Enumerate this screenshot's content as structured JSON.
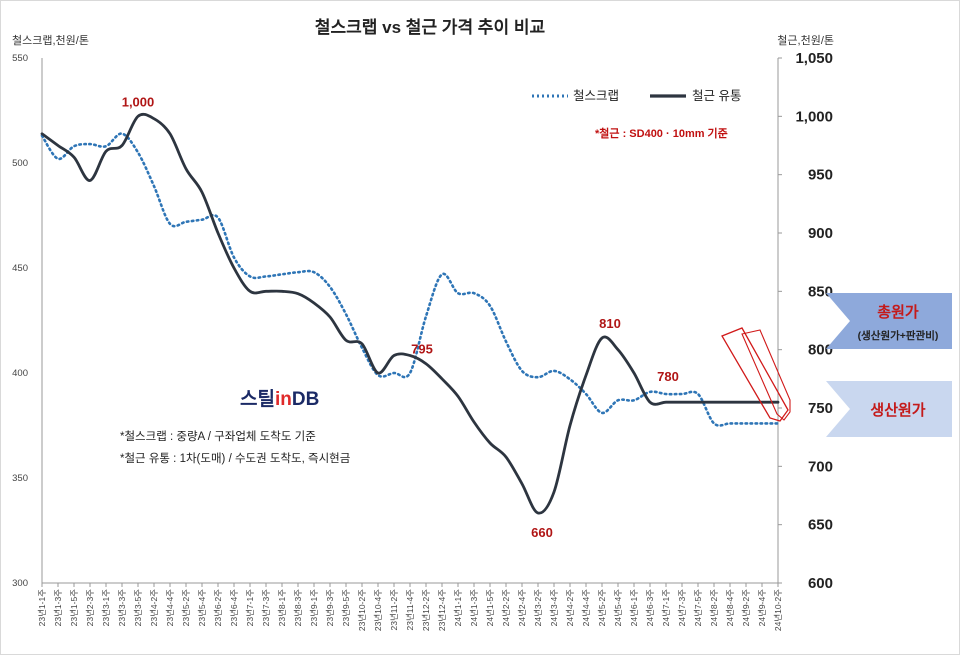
{
  "chart_data": {
    "type": "line",
    "title": "철스크랩 vs 철근 가격 추이 비교",
    "y_left_label": "철스크랩,천원/톤",
    "y_right_label": "철근,천원/톤",
    "y_left_ticks": [
      "550",
      "500",
      "450",
      "400",
      "350",
      "300"
    ],
    "y_right_ticks": [
      "1,050",
      "1,000",
      "950",
      "900",
      "850",
      "800",
      "750",
      "700",
      "650",
      "600"
    ],
    "ylim_left": [
      300,
      550
    ],
    "ylim_right": [
      600,
      1050
    ],
    "x_ticks": [
      "23년1-1주",
      "23년1-3주",
      "23년1-5주",
      "23년2-3주",
      "23년3-1주",
      "23년3-3주",
      "23년3-5주",
      "23년4-2주",
      "23년4-4주",
      "23년5-2주",
      "23년5-4주",
      "23년6-2주",
      "23년6-4주",
      "23년7-1주",
      "23년7-3주",
      "23년8-1주",
      "23년8-3주",
      "23년9-1주",
      "23년9-3주",
      "23년9-5주",
      "23년10-2주",
      "23년10-4주",
      "23년11-2주",
      "23년11-4주",
      "23년12-2주",
      "23년12-4주",
      "24년1-1주",
      "24년1-3주",
      "24년1-5주",
      "24년2-2주",
      "24년2-4주",
      "24년3-2주",
      "24년3-4주",
      "24년4-2주",
      "24년4-4주",
      "24년5-2주",
      "24년5-4주",
      "24년6-1주",
      "24년6-3주",
      "24년7-1주",
      "24년7-3주",
      "24년7-5주",
      "24년8-2주",
      "24년8-4주",
      "24년9-2주",
      "24년9-4주",
      "24년10-2주"
    ],
    "series": [
      {
        "name": "철스크랩",
        "axis": "left",
        "style": "dotted",
        "color": "#2e75b6",
        "x": [
          0,
          2,
          4,
          6,
          8,
          10,
          12,
          14,
          16,
          18,
          20,
          22,
          24,
          26,
          28,
          30,
          32,
          34,
          36,
          38,
          40,
          42,
          44,
          46,
          48,
          50,
          52,
          54,
          56,
          58,
          60,
          62,
          64,
          66,
          68,
          70,
          72,
          74,
          76,
          78,
          80,
          82,
          84,
          86,
          88,
          90,
          92
        ],
        "values": [
          513,
          502,
          508,
          509,
          508,
          514,
          505,
          489,
          471,
          472,
          473,
          474,
          455,
          446,
          446,
          447,
          448,
          448,
          441,
          428,
          412,
          399,
          400,
          400,
          427,
          447,
          438,
          438,
          432,
          415,
          401,
          398,
          401,
          397,
          390,
          381,
          387,
          387,
          391,
          390,
          390,
          390,
          376,
          376,
          376,
          376,
          376
        ]
      },
      {
        "name": "철근 유통",
        "axis": "right",
        "style": "solid",
        "color": "#2d3540",
        "x": [
          0,
          2,
          4,
          6,
          8,
          10,
          12,
          14,
          16,
          18,
          20,
          22,
          24,
          26,
          28,
          30,
          32,
          34,
          36,
          38,
          40,
          42,
          44,
          46,
          48,
          50,
          52,
          54,
          56,
          58,
          60,
          62,
          64,
          66,
          68,
          70,
          72,
          74,
          76,
          78,
          80,
          82,
          84,
          86,
          88,
          90,
          92
        ],
        "values": [
          985,
          975,
          965,
          945,
          970,
          975,
          1000,
          998,
          985,
          955,
          935,
          900,
          870,
          850,
          850,
          850,
          848,
          840,
          828,
          808,
          805,
          780,
          795,
          795,
          788,
          775,
          760,
          738,
          720,
          708,
          685,
          660,
          678,
          735,
          778,
          810,
          800,
          780,
          755,
          755,
          755,
          755,
          755,
          755,
          755,
          755,
          755
        ]
      }
    ],
    "annotations": [
      {
        "text": "1,000",
        "axis": "right",
        "x": 12,
        "y": 1000
      },
      {
        "text": "795",
        "axis": "right",
        "x": 46,
        "y": 795
      },
      {
        "text": "660",
        "axis": "right",
        "x": 62,
        "y": 660
      },
      {
        "text": "810",
        "axis": "right",
        "x": 72,
        "y": 810
      },
      {
        "text": "780",
        "axis": "right",
        "x": 77,
        "y": 780
      }
    ],
    "legend": {
      "placement": "top-right",
      "items": [
        "철스크랩",
        "철근 유통"
      ]
    },
    "grid": false
  },
  "notes": {
    "spec": "*철근 : SD400 · 10mm 기준",
    "scrap": "*철스크랩 : 중량A / 구좌업체 도착도 기준",
    "rebar": "*철근 유통 : 1차(도매) / 수도권 도착도, 즉시현금"
  },
  "logo": {
    "steel": "스틸",
    "in": "in",
    "db": "DB"
  },
  "banners": {
    "total_cost": {
      "title": "총원가",
      "sub": "(생산원가+판관비)",
      "color": "#8ea9db"
    },
    "production_cost": {
      "title": "생산원가",
      "color": "#c9d7ef"
    }
  },
  "colors": {
    "annotation": "#b01515",
    "arrow": "#d11a1a"
  }
}
